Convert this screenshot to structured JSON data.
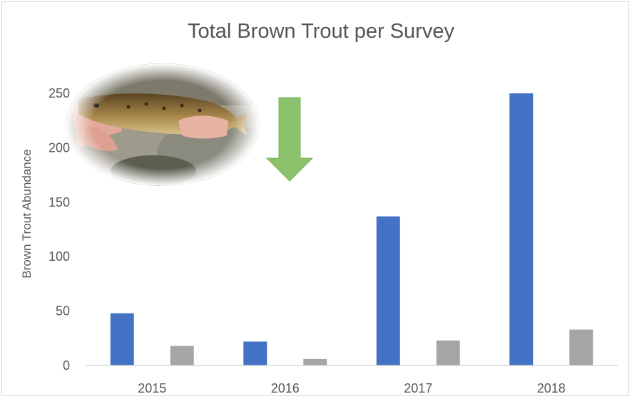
{
  "chart_data": {
    "type": "bar",
    "title": "Total Brown Trout per Survey",
    "xlabel": "",
    "ylabel": "Brown Trout Abundance",
    "categories": [
      "2015",
      "2016",
      "2017",
      "2018"
    ],
    "series": [
      {
        "values": [
          48,
          22,
          137,
          250
        ],
        "color": "#4472c4"
      },
      {
        "values": [
          18,
          6,
          23,
          33
        ],
        "color": "#a5a5a5"
      }
    ],
    "ylim": [
      0,
      250
    ],
    "yticks": [
      0,
      50,
      100,
      150,
      200,
      250
    ],
    "grid": false,
    "legend": "none"
  },
  "annotation": {
    "icon": "down-arrow-icon",
    "color": "#8dc26d"
  },
  "photo": {
    "icon": "brown-trout-photo"
  }
}
